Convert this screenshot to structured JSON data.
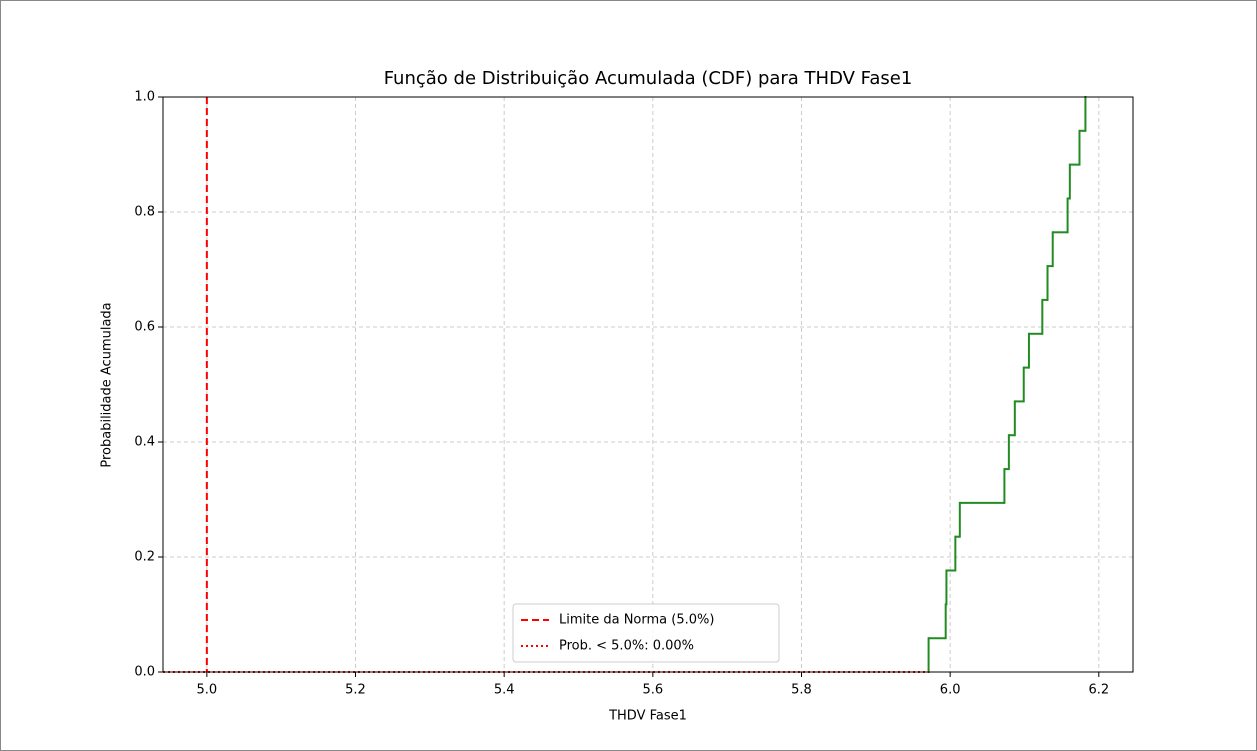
{
  "chart_data": {
    "type": "step",
    "title": "Função de Distribuição Acumulada (CDF) para THDV Fase1",
    "xlabel": "THDV Fase1",
    "ylabel": "Probabilidade Acumulada",
    "xlim": [
      4.941,
      6.246
    ],
    "ylim": [
      0,
      1
    ],
    "xticks": [
      {
        "value": 5,
        "label": "5.0"
      },
      5.2,
      5.4,
      5.6,
      5.8,
      {
        "value": 6,
        "label": "6.0"
      },
      6.2
    ],
    "yticks": [
      {
        "value": 0,
        "label": "0.0"
      },
      0.2,
      0.4,
      0.6,
      0.8,
      {
        "value": 1,
        "label": "1.0"
      }
    ],
    "grid": true,
    "legend": "lower center",
    "series": [
      {
        "color": "#228b22",
        "x": [
          5.971,
          5.994,
          5.995,
          6.007,
          6.013,
          6.073,
          6.079,
          6.087,
          6.099,
          6.106,
          6.124,
          6.131,
          6.138,
          6.158,
          6.161,
          6.174,
          6.182
        ],
        "values": [
          0.0588,
          0.1176,
          0.1765,
          0.2353,
          0.2941,
          0.3529,
          0.4118,
          0.4706,
          0.5294,
          0.5882,
          0.6471,
          0.7059,
          0.7647,
          0.8235,
          0.8824,
          0.9412,
          1.0
        ]
      }
    ],
    "vline": {
      "name": "Limite da Norma (5.0%)",
      "color": "#ff0000",
      "value": 5
    },
    "hline": {
      "name": "Prob. < 5.0%: 0.00%",
      "color": "#ff0000",
      "value": 0
    }
  }
}
